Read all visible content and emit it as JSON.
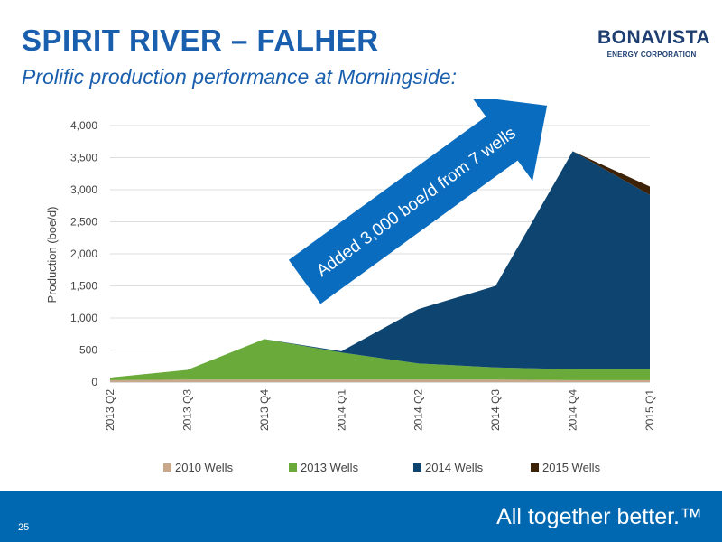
{
  "header": {
    "title": "SPIRIT RIVER – FALHER",
    "subtitle": "Prolific production performance at Morningside:"
  },
  "logo": {
    "brand": "BONAVISTA",
    "sub": "ENERGY CORPORATION"
  },
  "footer": {
    "slide_number": "25",
    "tagline": "All together better.™"
  },
  "colors": {
    "accent": "#1a5fae",
    "footer_bg": "#0067b1",
    "arrow": "#0a6cbe"
  },
  "chart_data": {
    "type": "area",
    "stacked": true,
    "ylabel": "Production (boe/d)",
    "xlabel": "",
    "ylim": [
      0,
      4000
    ],
    "yticks": [
      0,
      500,
      1000,
      1500,
      2000,
      2500,
      3000,
      3500,
      4000
    ],
    "ytick_labels": [
      "0",
      "500",
      "1,000",
      "1,500",
      "2,000",
      "2,500",
      "3,000",
      "3,500",
      "4,000"
    ],
    "categories": [
      "2013 Q2",
      "2013 Q3",
      "2013 Q4",
      "2014 Q1",
      "2014 Q2",
      "2014 Q3",
      "2014 Q4",
      "2015 Q1"
    ],
    "series": [
      {
        "name": "2010 Wells",
        "color": "#c9a78a",
        "values": [
          30,
          40,
          40,
          40,
          40,
          40,
          30,
          30
        ]
      },
      {
        "name": "2013 Wells",
        "color": "#6aaa3a",
        "values": [
          40,
          150,
          630,
          420,
          250,
          190,
          170,
          170
        ]
      },
      {
        "name": "2014 Wells",
        "color": "#0d4570",
        "values": [
          0,
          0,
          0,
          20,
          850,
          1270,
          3400,
          2720
        ]
      },
      {
        "name": "2015 Wells",
        "color": "#3d2208",
        "values": [
          0,
          0,
          0,
          0,
          0,
          0,
          0,
          130
        ]
      }
    ],
    "legend_position": "bottom",
    "grid": true,
    "annotation": "Added 3,000 boe/d from 7 wells"
  }
}
